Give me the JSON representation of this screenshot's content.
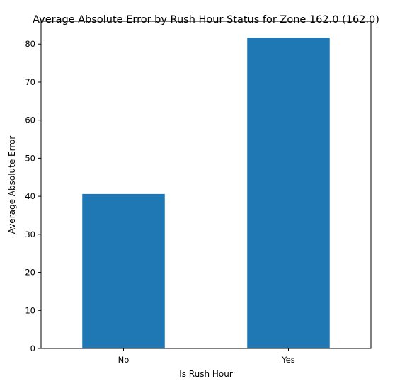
{
  "chart_data": {
    "type": "bar",
    "title": "Average Absolute Error by Rush Hour Status for Zone 162.0 (162.0)",
    "xlabel": "Is Rush Hour",
    "ylabel": "Average Absolute Error",
    "categories": [
      "No",
      "Yes"
    ],
    "values": [
      40.6,
      81.7
    ],
    "ylim": [
      0,
      86
    ],
    "yticks": [
      0,
      10,
      20,
      30,
      40,
      50,
      60,
      70,
      80
    ],
    "bar_color": "#1f77b4",
    "grid": false,
    "legend": "none"
  }
}
